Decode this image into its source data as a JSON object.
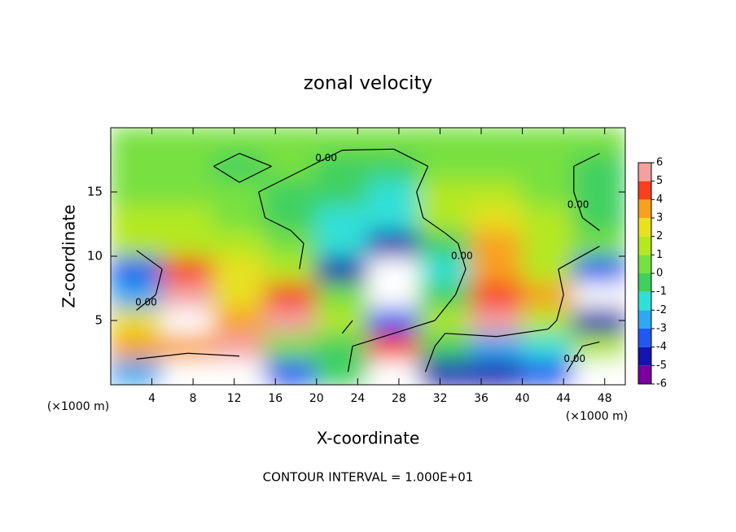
{
  "chart_data": {
    "type": "heatmap",
    "title": "zonal velocity",
    "x_label": "X-coordinate",
    "y_label": "Z-coordinate",
    "x_unit_labels": [
      "(×1000 m)",
      "(×1000 m)"
    ],
    "note": "CONTOUR INTERVAL = 1.000E+01",
    "x": [
      2.5,
      7.5,
      12.5,
      17.5,
      22.5,
      27.5,
      32.5,
      37.5,
      42.5,
      47.5
    ],
    "y": [
      1,
      3,
      5,
      7,
      9,
      11,
      13,
      15,
      17,
      19
    ],
    "z": [
      [
        -3,
        -8,
        -8,
        -4,
        -1,
        8,
        -5,
        -5,
        -4,
        7
      ],
      [
        3,
        3,
        5,
        0,
        -1,
        4,
        -1,
        -3,
        -2,
        1
      ],
      [
        2,
        7,
        3,
        5,
        1,
        -4,
        1,
        5,
        1,
        -5
      ],
      [
        -3,
        5,
        2,
        4,
        0,
        -8,
        -1,
        4,
        3,
        -7
      ],
      [
        -4,
        4,
        2.5,
        1,
        -5,
        -8,
        -2,
        3,
        1,
        -4
      ],
      [
        1.5,
        1.5,
        1.5,
        0.5,
        -1.5,
        -5,
        -1,
        3,
        1.5,
        0.5
      ],
      [
        1,
        1,
        0.5,
        -0.5,
        -1.5,
        -2,
        1.5,
        2,
        1,
        -0.5
      ],
      [
        0.8,
        0.5,
        0.3,
        -0.5,
        -1,
        -1.2,
        1.5,
        1,
        0.5,
        -0.5
      ],
      [
        0.5,
        0.5,
        -0.5,
        0.3,
        -0.5,
        -1,
        0.5,
        0.8,
        0.5,
        -0.5
      ],
      [
        0.5,
        0.5,
        0.5,
        0.3,
        0.3,
        0.5,
        0.5,
        0.3,
        0.3,
        0.5
      ]
    ],
    "xlim": [
      0,
      50
    ],
    "ylim": [
      0,
      20
    ],
    "xticks": [
      4,
      8,
      12,
      16,
      20,
      24,
      28,
      32,
      36,
      40,
      44,
      48
    ],
    "yticks": [
      5,
      10,
      15
    ],
    "contour_level": {
      "value": 0,
      "label": "0.00"
    },
    "colorbar": {
      "ticks": [
        -6,
        -5,
        -4,
        -3,
        -2,
        -1,
        0,
        1,
        2,
        3,
        4,
        5,
        6
      ],
      "colors": [
        "#7a00a0",
        "#1414b0",
        "#2058f0",
        "#30a8f0",
        "#30e0d8",
        "#40d060",
        "#78e040",
        "#b4e820",
        "#e8e020",
        "#f8a020",
        "#f84020",
        "#f4a0a0"
      ],
      "out_of_range_color": "#ffffff"
    }
  }
}
